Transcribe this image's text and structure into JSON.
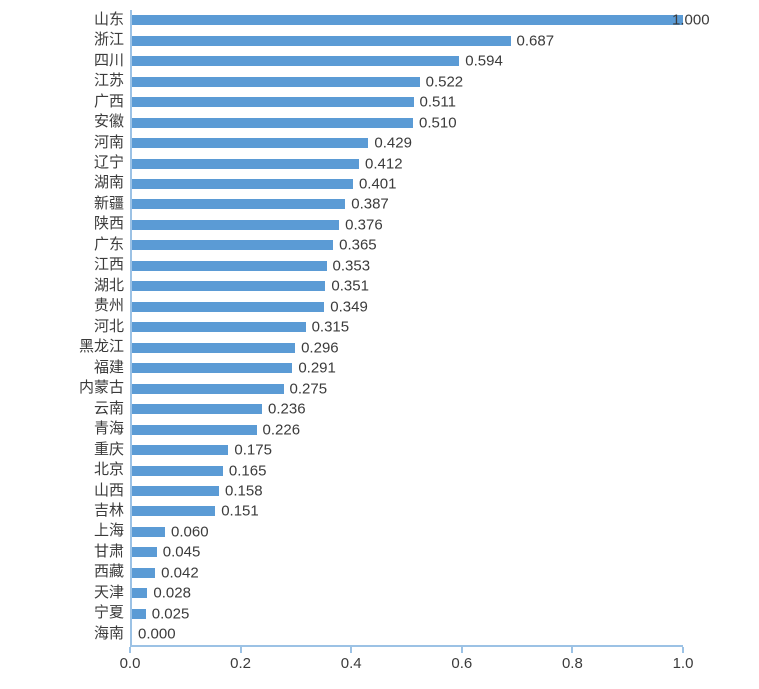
{
  "chart_data": {
    "type": "bar",
    "orientation": "horizontal",
    "title": "",
    "xlabel": "",
    "ylabel": "",
    "categories": [
      "山东",
      "浙江",
      "四川",
      "江苏",
      "广西",
      "安徽",
      "河南",
      "辽宁",
      "湖南",
      "新疆",
      "陕西",
      "广东",
      "江西",
      "湖北",
      "贵州",
      "河北",
      "黑龙江",
      "福建",
      "内蒙古",
      "云南",
      "青海",
      "重庆",
      "北京",
      "山西",
      "吉林",
      "上海",
      "甘肃",
      "西藏",
      "天津",
      "宁夏",
      "海南"
    ],
    "values": [
      1.0,
      0.687,
      0.594,
      0.522,
      0.511,
      0.51,
      0.429,
      0.412,
      0.401,
      0.387,
      0.376,
      0.365,
      0.353,
      0.351,
      0.349,
      0.315,
      0.296,
      0.291,
      0.275,
      0.236,
      0.226,
      0.175,
      0.165,
      0.158,
      0.151,
      0.06,
      0.045,
      0.042,
      0.028,
      0.025,
      0.0
    ],
    "value_labels": [
      "1.000",
      "0.687",
      "0.594",
      "0.522",
      "0.511",
      "0.510",
      "0.429",
      "0.412",
      "0.401",
      "0.387",
      "0.376",
      "0.365",
      "0.353",
      "0.351",
      "0.349",
      "0.315",
      "0.296",
      "0.291",
      "0.275",
      "0.236",
      "0.226",
      "0.175",
      "0.165",
      "0.158",
      "0.151",
      "0.060",
      "0.045",
      "0.042",
      "0.028",
      "0.025",
      "0.000"
    ],
    "xlim": [
      0.0,
      1.0
    ],
    "x_ticks": [
      "0.0",
      "0.2",
      "0.4",
      "0.6",
      "0.8",
      "1.0"
    ],
    "grid": "off",
    "legend": "none",
    "bar_color": "#5B9BD5",
    "axis_color": "#9CC2E5",
    "text_color": "#3b3b3b"
  }
}
